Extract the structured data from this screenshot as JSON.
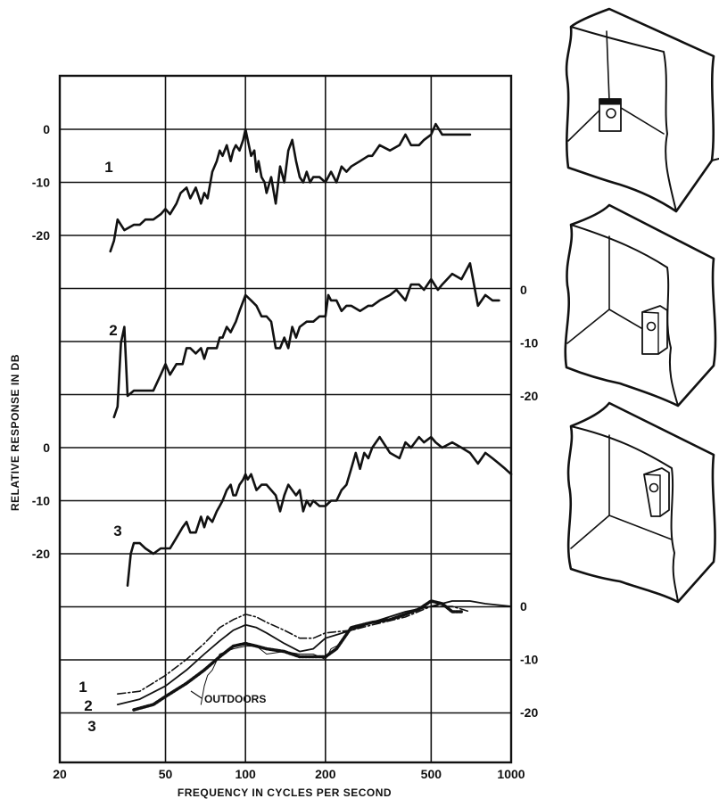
{
  "chart_data": {
    "type": "line",
    "xlabel": "FREQUENCY IN CYCLES PER SECOND",
    "ylabel": "RELATIVE RESPONSE IN DB",
    "xscale": "log",
    "xlim": [
      20,
      1000
    ],
    "x_ticks": [
      "20",
      "50",
      "100",
      "200",
      "500",
      "1000"
    ],
    "grid": true,
    "panels": [
      {
        "curve_label": "1",
        "y_tick_side": "left",
        "y_ticks": [
          "0",
          "-10",
          "-20"
        ],
        "series": [
          {
            "x": [
              31,
              32,
              33,
              35,
              38,
              40,
              42,
              45,
              48,
              50,
              52,
              55,
              57,
              60,
              62,
              65,
              68,
              70,
              72,
              75,
              78,
              80,
              82,
              85,
              88,
              90,
              92,
              95,
              98,
              100,
              102,
              105,
              108,
              110,
              112,
              115,
              118,
              120,
              125,
              130,
              135,
              140,
              145,
              150,
              155,
              160,
              165,
              170,
              175,
              180,
              190,
              200,
              210,
              220,
              230,
              240,
              250,
              270,
              290,
              300,
              320,
              350,
              380,
              400,
              420,
              450,
              470,
              500,
              520,
              550,
              600,
              650,
              700
            ],
            "y": [
              -23,
              -21,
              -17,
              -19,
              -18,
              -18,
              -17,
              -17,
              -16,
              -15,
              -16,
              -14,
              -12,
              -11,
              -13,
              -11,
              -14,
              -12,
              -13,
              -8,
              -6,
              -4,
              -5,
              -3,
              -6,
              -4,
              -3,
              -4,
              -2,
              0,
              -2,
              -5,
              -4,
              -8,
              -6,
              -9,
              -10,
              -12,
              -9,
              -14,
              -7,
              -10,
              -4,
              -2,
              -6,
              -9,
              -10,
              -8,
              -10,
              -9,
              -9,
              -10,
              -8,
              -10,
              -7,
              -8,
              -7,
              -6,
              -5,
              -5,
              -3,
              -4,
              -3,
              -1,
              -3,
              -3,
              -2,
              -1,
              1,
              -1,
              -1,
              -1,
              -1
            ]
          }
        ]
      },
      {
        "curve_label": "2",
        "y_tick_side": "right",
        "y_ticks": [
          "0",
          "-10",
          "-20"
        ],
        "series": [
          {
            "x": [
              32,
              33,
              34,
              35,
              36,
              38,
              40,
              42,
              45,
              48,
              50,
              52,
              55,
              58,
              60,
              62,
              65,
              68,
              70,
              72,
              75,
              78,
              80,
              82,
              85,
              88,
              90,
              92,
              95,
              100,
              105,
              110,
              115,
              120,
              125,
              130,
              135,
              140,
              145,
              150,
              155,
              160,
              170,
              180,
              190,
              200,
              205,
              210,
              220,
              230,
              240,
              250,
              270,
              290,
              300,
              320,
              350,
              370,
              400,
              420,
              450,
              470,
              500,
              530,
              550,
              600,
              650,
              700,
              750,
              800,
              850,
              900
            ],
            "y": [
              -24,
              -22,
              -10,
              -7,
              -20,
              -19,
              -19,
              -19,
              -19,
              -16,
              -14,
              -16,
              -14,
              -14,
              -11,
              -11,
              -12,
              -11,
              -13,
              -11,
              -11,
              -11,
              -9,
              -9,
              -7,
              -8,
              -7,
              -6,
              -4,
              -1,
              -2,
              -3,
              -5,
              -5,
              -6,
              -11,
              -11,
              -9,
              -11,
              -7,
              -9,
              -7,
              -6,
              -6,
              -5,
              -5,
              -1,
              -2,
              -2,
              -4,
              -3,
              -3,
              -4,
              -3,
              -3,
              -2,
              -1,
              0,
              -2,
              1,
              1,
              0,
              2,
              0,
              1,
              3,
              2,
              5,
              -3,
              -1,
              -2,
              -2
            ]
          }
        ]
      },
      {
        "curve_label": "3",
        "y_tick_side": "left",
        "y_ticks": [
          "0",
          "-10",
          "-20"
        ],
        "series": [
          {
            "x": [
              36,
              37,
              38,
              40,
              42,
              45,
              48,
              50,
              52,
              55,
              58,
              60,
              62,
              65,
              68,
              70,
              72,
              75,
              78,
              80,
              82,
              85,
              88,
              90,
              92,
              95,
              98,
              100,
              102,
              105,
              110,
              115,
              120,
              125,
              130,
              135,
              140,
              145,
              150,
              155,
              160,
              165,
              170,
              175,
              180,
              190,
              200,
              210,
              220,
              230,
              240,
              250,
              260,
              270,
              280,
              290,
              300,
              320,
              350,
              380,
              400,
              420,
              450,
              470,
              500,
              520,
              550,
              600,
              650,
              700,
              750,
              800,
              850,
              900,
              950,
              1000
            ],
            "y": [
              -26,
              -20,
              -18,
              -18,
              -19,
              -20,
              -19,
              -19,
              -19,
              -17,
              -15,
              -14,
              -16,
              -16,
              -13,
              -15,
              -13,
              -14,
              -12,
              -11,
              -10,
              -8,
              -7,
              -9,
              -9,
              -7,
              -6,
              -5,
              -6,
              -5,
              -8,
              -7,
              -7,
              -8,
              -9,
              -12,
              -9,
              -7,
              -8,
              -9,
              -8,
              -12,
              -10,
              -11,
              -10,
              -11,
              -11,
              -10,
              -10,
              -8,
              -7,
              -4,
              -1,
              -4,
              -1,
              -2,
              0,
              2,
              -1,
              -2,
              1,
              0,
              2,
              1,
              2,
              1,
              0,
              1,
              0,
              -1,
              -3,
              -1,
              -2,
              -3,
              -4,
              -5
            ]
          }
        ]
      },
      {
        "y_tick_side": "right",
        "y_ticks": [
          "0",
          "-10",
          "-20"
        ],
        "annotation": "OUTDOORS",
        "series": [
          {
            "name": "1",
            "style": "dash-dot",
            "x": [
              33,
              40,
              50,
              60,
              70,
              80,
              90,
              100,
              110,
              120,
              140,
              160,
              180,
              200,
              250,
              300,
              400,
              500,
              600,
              700
            ],
            "y": [
              -16.5,
              -16,
              -13,
              -10,
              -7,
              -4,
              -2.5,
              -1.5,
              -2,
              -3,
              -4.5,
              -6,
              -6,
              -5,
              -4.5,
              -3.5,
              -2,
              0,
              0,
              -1
            ]
          },
          {
            "name": "2",
            "style": "solid",
            "x": [
              33,
              40,
              50,
              60,
              70,
              80,
              90,
              100,
              110,
              120,
              140,
              160,
              180,
              200,
              250,
              300,
              400,
              500,
              600,
              700,
              800,
              1000
            ],
            "y": [
              -18.5,
              -17.5,
              -15,
              -12,
              -9,
              -6.5,
              -4.5,
              -3.5,
              -4,
              -5,
              -7,
              -8.5,
              -8,
              -6,
              -4.5,
              -3,
              -1,
              0,
              1,
              1,
              0.5,
              0
            ]
          },
          {
            "name": "3",
            "style": "dotted-heavy",
            "x": [
              38,
              45,
              50,
              60,
              70,
              80,
              90,
              100,
              110,
              120,
              140,
              160,
              180,
              200,
              220,
              250,
              300,
              350,
              400,
              450,
              500,
              550,
              600,
              650
            ],
            "y": [
              -19.5,
              -18.5,
              -17,
              -14.5,
              -12,
              -9.5,
              -7.5,
              -7,
              -7.5,
              -8,
              -8.5,
              -9.5,
              -9.5,
              -9.5,
              -8,
              -4,
              -3,
              -2.5,
              -1.5,
              -0.5,
              1,
              0.5,
              -1,
              -1
            ]
          },
          {
            "name": "OUTDOORS",
            "style": "thin",
            "x": [
              68,
              70,
              72,
              75,
              80,
              90,
              100,
              110,
              120,
              140,
              160,
              180,
              200,
              210,
              220,
              230
            ],
            "y": [
              -18.5,
              -15,
              -13,
              -12,
              -9,
              -8,
              -7.5,
              -7.5,
              -9,
              -8.5,
              -9,
              -9,
              -10,
              -8,
              -7.5,
              -7
            ]
          }
        ]
      }
    ]
  }
}
